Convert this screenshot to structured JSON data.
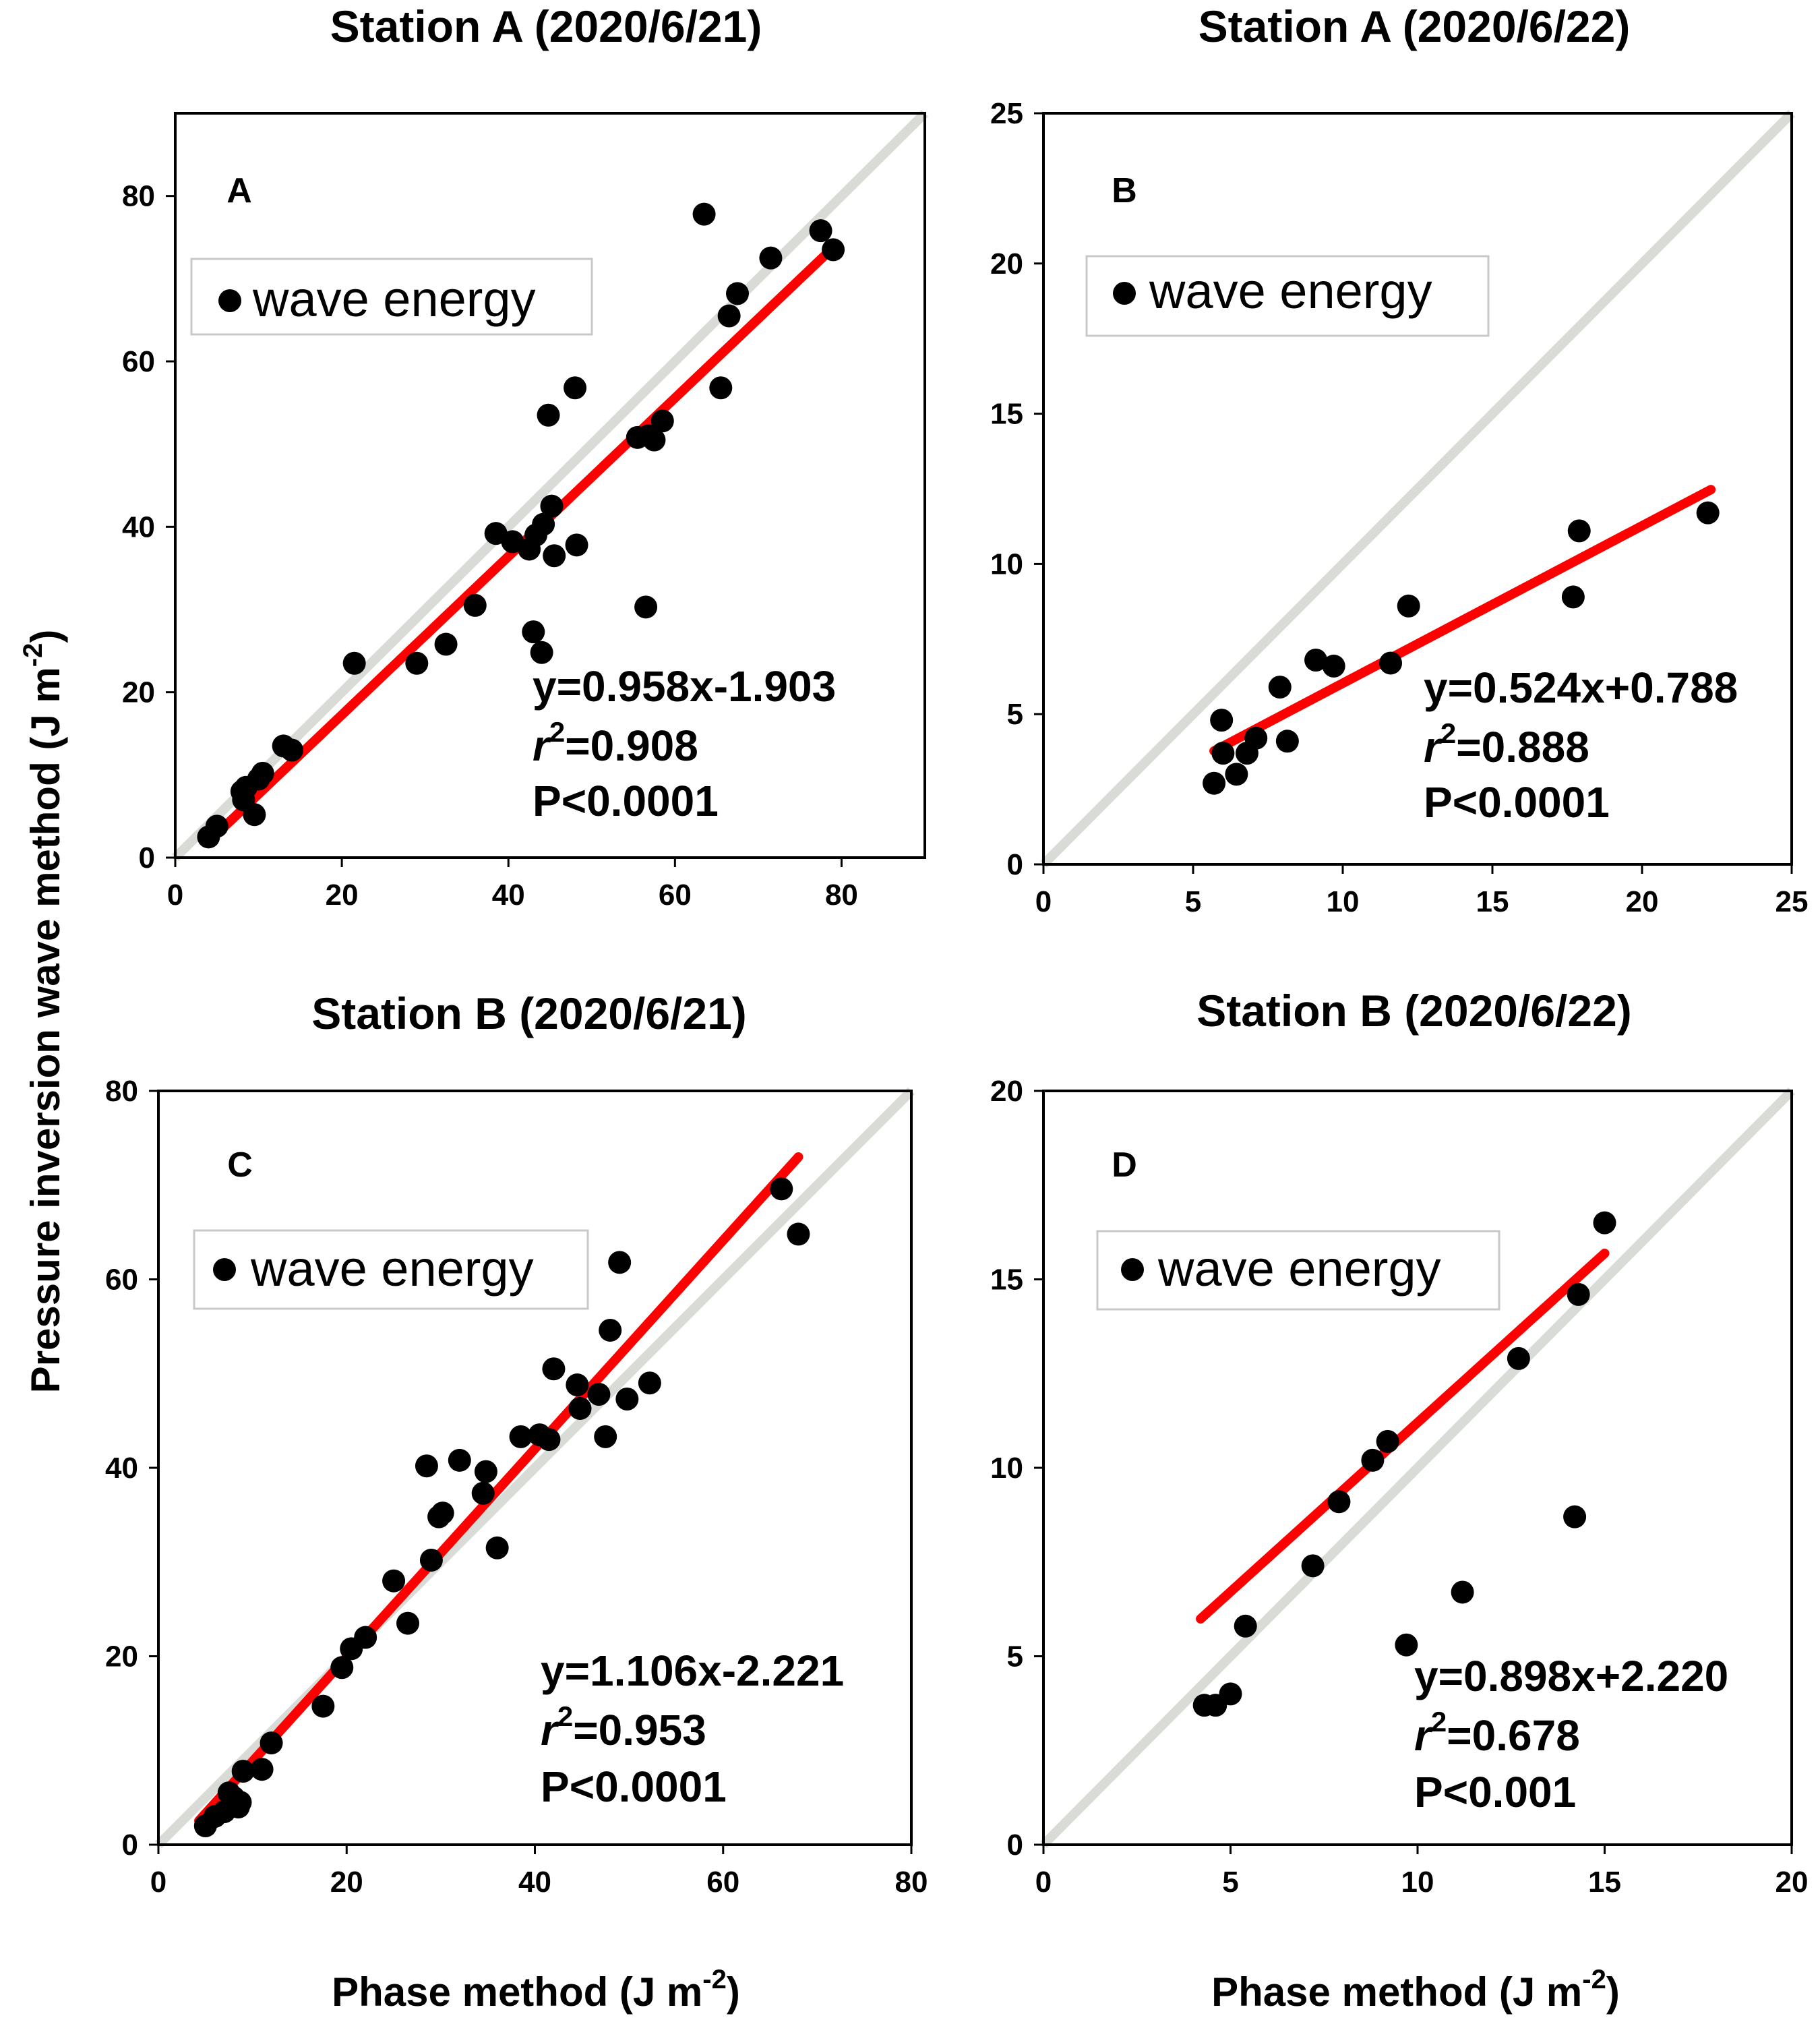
{
  "colors": {
    "points": "#000000",
    "regression_line": "#ff0000",
    "identity_line": "#d9dbd6",
    "axes": "#000000",
    "legend_border": "#c8c8c8"
  },
  "chart_data": [
    {
      "id": "A",
      "type": "scatter",
      "title": "Station A (2020/6/21)",
      "panel_label": "A",
      "xlabel": "",
      "ylabel": "Pressure inversion wave method (J m-2)",
      "xlim": [
        0,
        90
      ],
      "ylim": [
        0,
        90
      ],
      "xticks": [
        "0",
        "20",
        "40",
        "60",
        "80"
      ],
      "yticks": [
        "0",
        "20",
        "40",
        "60",
        "80"
      ],
      "legend": "wave energy",
      "legend_position": "upper-left",
      "series": [
        {
          "name": "wave energy",
          "x": [
            4,
            5,
            8,
            8.2,
            8.5,
            9.5,
            10,
            10.5,
            13,
            14,
            21.5,
            29,
            32.5,
            36,
            38.5,
            40.5,
            42.5,
            43,
            43.3,
            44,
            44.2,
            44.8,
            45.2,
            45.5,
            48,
            48.2,
            55.5,
            56.5,
            56.8,
            57.5,
            58.5,
            63.5,
            65.5,
            66.5,
            67.5,
            71.5,
            77.5,
            79
          ],
          "y": [
            2.5,
            3.8,
            8,
            7,
            8.5,
            5.2,
            9.5,
            10.2,
            13.5,
            13,
            23.5,
            23.5,
            25.8,
            30.5,
            39.2,
            38.2,
            37.3,
            27.3,
            39,
            24.8,
            40.3,
            53.5,
            42.5,
            36.5,
            56.8,
            37.8,
            50.8,
            30.3,
            51,
            50.5,
            52.8,
            77.8,
            56.8,
            65.5,
            68.2,
            72.5,
            75.8,
            73.5
          ]
        }
      ],
      "fit": {
        "slope": 0.958,
        "intercept": -1.903,
        "x_range": [
          4,
          79
        ]
      },
      "identity_line": true,
      "stats": {
        "equation": "y=0.958x-1.903",
        "r_symbol": "r",
        "r_exponent": "2",
        "r_value": "=0.908",
        "p_value": "P<0.0001"
      }
    },
    {
      "id": "B",
      "type": "scatter",
      "title": "Station A (2020/6/22)",
      "panel_label": "B",
      "xlabel": "",
      "ylabel": "",
      "xlim": [
        0,
        25
      ],
      "ylim": [
        0,
        25
      ],
      "xticks": [
        "0",
        "5",
        "10",
        "15",
        "20",
        "25"
      ],
      "yticks": [
        "0",
        "5",
        "10",
        "15",
        "20",
        "25"
      ],
      "legend": "wave energy",
      "legend_position": "upper-left",
      "series": [
        {
          "name": "wave energy",
          "x": [
            5.7,
            5.95,
            6,
            6.45,
            6.8,
            7.1,
            7.9,
            8.15,
            9.1,
            9.7,
            11.6,
            12.2,
            17.7,
            17.9,
            22.2
          ],
          "y": [
            2.7,
            4.8,
            3.7,
            3.0,
            3.7,
            4.2,
            5.9,
            4.1,
            6.8,
            6.6,
            6.7,
            8.6,
            8.9,
            11.1,
            11.7
          ]
        }
      ],
      "fit": {
        "slope": 0.524,
        "intercept": 0.788,
        "x_range": [
          5.7,
          22.3
        ]
      },
      "identity_line": true,
      "stats": {
        "equation": "y=0.524x+0.788",
        "r_symbol": "r",
        "r_exponent": "2",
        "r_value": "=0.888",
        "p_value": "P<0.0001"
      }
    },
    {
      "id": "C",
      "type": "scatter",
      "title": "Station B (2020/6/21)",
      "panel_label": "C",
      "xlabel": "Phase method (J m-2)",
      "ylabel": "Pressure inversion wave method (J m-2)",
      "xlim": [
        0,
        80
      ],
      "ylim": [
        0,
        80
      ],
      "xticks": [
        "0",
        "20",
        "40",
        "60",
        "80"
      ],
      "yticks": [
        "0",
        "20",
        "40",
        "60",
        "80"
      ],
      "legend": "wave energy",
      "legend_position": "upper-left",
      "series": [
        {
          "name": "wave energy",
          "x": [
            5,
            6,
            7,
            7.5,
            8,
            8.5,
            8.7,
            9,
            11,
            12,
            17.5,
            19.5,
            20.5,
            22,
            25,
            26.5,
            28.5,
            29,
            29.8,
            30.2,
            32,
            34.5,
            34.8,
            36,
            38.5,
            40.5,
            41.5,
            42,
            44.5,
            44.8,
            46.8,
            47.5,
            48,
            49,
            49.8,
            52.2,
            66.2,
            68
          ],
          "y": [
            2,
            3,
            3.5,
            5.5,
            5,
            4,
            4.5,
            7.8,
            8,
            10.8,
            14.7,
            18.8,
            20.8,
            22,
            28,
            23.5,
            40.2,
            30.2,
            34.8,
            35.2,
            40.8,
            37.3,
            39.6,
            31.5,
            43.3,
            43.5,
            43,
            50.5,
            48.8,
            46.3,
            47.8,
            43.3,
            54.6,
            61.8,
            47.3,
            49,
            69.6,
            64.8
          ]
        }
      ],
      "fit": {
        "slope": 1.106,
        "intercept": -2.221,
        "x_range": [
          4.3,
          68
        ]
      },
      "identity_line": true,
      "stats": {
        "equation": "y=1.106x-2.221",
        "r_symbol": "r",
        "r_exponent": "2",
        "r_value": "=0.953",
        "p_value": "P<0.0001"
      }
    },
    {
      "id": "D",
      "type": "scatter",
      "title": "Station B (2020/6/22)",
      "panel_label": "D",
      "xlabel": "Phase method (J m-2)",
      "ylabel": "",
      "xlim": [
        0,
        20
      ],
      "ylim": [
        0,
        20
      ],
      "xticks": [
        "0",
        "5",
        "10",
        "15",
        "20"
      ],
      "yticks": [
        "0",
        "5",
        "10",
        "15",
        "20"
      ],
      "legend": "wave energy",
      "legend_position": "upper-left",
      "series": [
        {
          "name": "wave energy",
          "x": [
            4.3,
            4.6,
            5.0,
            5.4,
            7.2,
            7.9,
            8.8,
            9.2,
            9.7,
            11.2,
            12.7,
            14.2,
            14.3,
            15.0
          ],
          "y": [
            3.7,
            3.7,
            4.0,
            5.8,
            7.4,
            9.1,
            10.2,
            10.7,
            5.3,
            6.7,
            12.9,
            8.7,
            14.6,
            16.5
          ]
        }
      ],
      "fit": {
        "slope": 0.898,
        "intercept": 2.22,
        "x_range": [
          4.2,
          15
        ]
      },
      "identity_line": true,
      "stats": {
        "equation": "y=0.898x+2.220",
        "r_symbol": "r",
        "r_exponent": "2",
        "r_value": "=0.678",
        "p_value": "P<0.001"
      }
    }
  ],
  "shared_labels": {
    "ylabel_main": "Pressure inversion wave method (J m",
    "ylabel_sup": "-2",
    "ylabel_close": ")",
    "xlabel_main": "Phase method (J m",
    "xlabel_sup": "-2",
    "xlabel_close": ")"
  }
}
